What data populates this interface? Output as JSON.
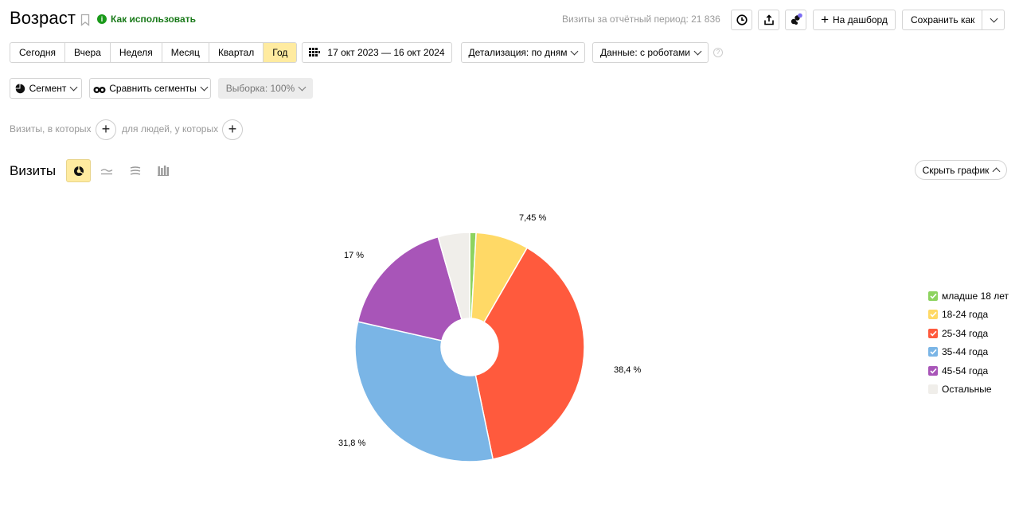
{
  "header": {
    "title": "Возраст",
    "howto_label": "Как использовать",
    "visits_total": "Визиты за отчётный период: 21 836",
    "dashboard_label": "На дашборд",
    "save_as_label": "Сохранить как"
  },
  "period_tabs": [
    {
      "label": "Сегодня",
      "active": false
    },
    {
      "label": "Вчера",
      "active": false
    },
    {
      "label": "Неделя",
      "active": false
    },
    {
      "label": "Месяц",
      "active": false
    },
    {
      "label": "Квартал",
      "active": false
    },
    {
      "label": "Год",
      "active": true
    }
  ],
  "date_range": "17 окт 2023 — 16 окт 2024",
  "detail_label": "Детализация: по дням",
  "data_label": "Данные: с роботами",
  "segment_label": "Сегмент",
  "compare_label": "Сравнить сегменты",
  "sample_label": "Выборка: 100%",
  "filters": {
    "visits_label": "Визиты, в которых",
    "people_label": "для людей, у которых"
  },
  "chart_section": {
    "title": "Визиты",
    "hide_label": "Скрыть график"
  },
  "chart_data": {
    "type": "pie",
    "donut": true,
    "slices": [
      {
        "name": "младше 18 лет",
        "value": 0.9,
        "label": "",
        "color": "#8dd35f"
      },
      {
        "name": "18-24 года",
        "value": 7.45,
        "label": "7,45 %",
        "color": "#ffd966"
      },
      {
        "name": "25-34 года",
        "value": 38.4,
        "label": "38,4 %",
        "color": "#ff5a3d"
      },
      {
        "name": "35-44 года",
        "value": 31.8,
        "label": "31,8 %",
        "color": "#7ab5e6"
      },
      {
        "name": "45-54 года",
        "value": 17,
        "label": "17 %",
        "color": "#a855b8"
      },
      {
        "name": "Остальные",
        "value": 4.45,
        "label": "",
        "color": "#f0eeea"
      }
    ],
    "legend_position": "right"
  }
}
